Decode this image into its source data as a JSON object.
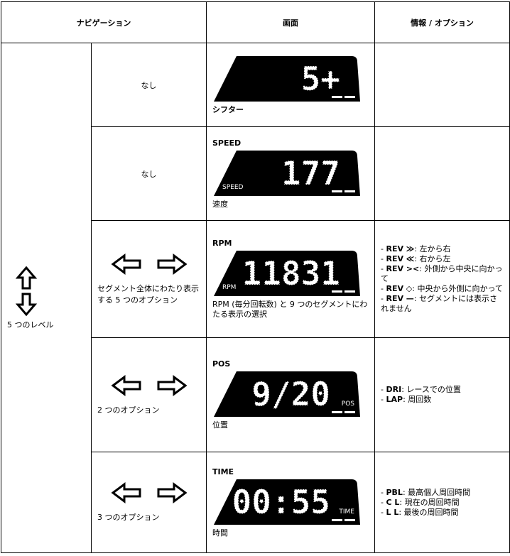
{
  "header": {
    "navigation": "ナビゲーション",
    "screen": "画面",
    "info": "情報 / オプション"
  },
  "levels": "5 つのレベル",
  "rows": [
    {
      "navigation": "なし",
      "screen": {
        "display": "5+",
        "caption": "シフター"
      }
    },
    {
      "navigation": "なし",
      "screen": {
        "label": "SPEED",
        "display": "177",
        "unit": "SPEED",
        "caption": "速度"
      }
    },
    {
      "navigation": "セグメント全体にわたり表示する 5 つのオプション",
      "screen": {
        "label": "RPM",
        "display": "11831",
        "unit": "RPM",
        "caption": "RPM (毎分回転数) と 9 つのセグメントにわたる表示の選択"
      },
      "info": [
        {
          "dash": "-",
          "key": "REV ≫",
          "text": ": 左から右"
        },
        {
          "dash": "-",
          "key": "REV ≪",
          "text": ": 右から左"
        },
        {
          "dash": "-",
          "key": "REV ><",
          "text": ": 外側から中央に向かって"
        },
        {
          "dash": "-",
          "key": "REV ◇",
          "text": ": 中央から外側に向かって"
        },
        {
          "dash": "-",
          "key": "REV —",
          "text": ": セグメントには表示されません"
        }
      ]
    },
    {
      "navigation": "2 つのオプション",
      "screen": {
        "label": "POS",
        "display": "9/20",
        "unit": "POS",
        "caption": "位置"
      },
      "info": [
        {
          "dash": "-",
          "key": "DRI",
          "text": ": レースでの位置"
        },
        {
          "dash": "-",
          "key": "LAP",
          "text": ": 周回数"
        }
      ]
    },
    {
      "navigation": "3 つのオプション",
      "screen": {
        "label": "TIME",
        "display": "00:55",
        "unit": "TIME",
        "caption": "時間"
      },
      "info": [
        {
          "dash": "-",
          "key": "PBL",
          "text": ": 最高個人周回時間"
        },
        {
          "dash": "-",
          "key": "C L",
          "text": ": 現在の周回時間"
        },
        {
          "dash": "-",
          "key": "L L",
          "text": ": 最後の周回時間"
        }
      ]
    }
  ]
}
